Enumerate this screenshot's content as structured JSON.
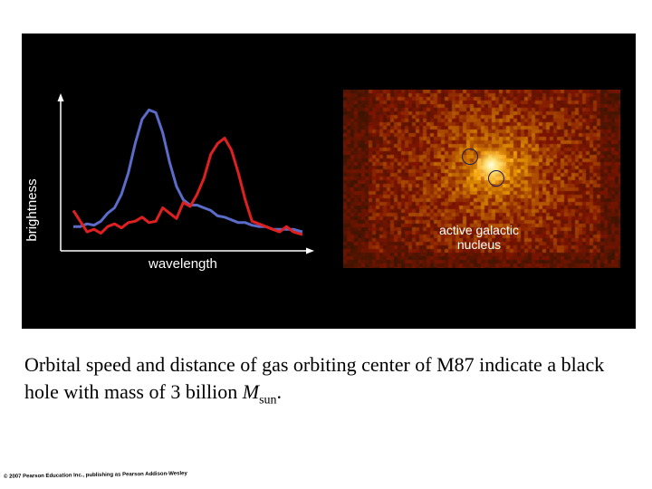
{
  "chart_data": {
    "type": "line",
    "xlabel": "wavelength",
    "ylabel": "brightness",
    "grid": false,
    "legend": "none",
    "series": [
      {
        "color": "#5a6bc8",
        "x": [
          0,
          3,
          6,
          9,
          12,
          15,
          18,
          21,
          24,
          27,
          30,
          33,
          36,
          39,
          42,
          45,
          48,
          51,
          54,
          57,
          60,
          63,
          66,
          69,
          72,
          75,
          78,
          81,
          84,
          87,
          90,
          93,
          96,
          100
        ],
        "y": [
          10,
          10,
          12,
          11,
          14,
          20,
          24,
          34,
          50,
          72,
          90,
          97,
          95,
          80,
          58,
          40,
          30,
          26,
          26,
          24,
          22,
          18,
          17,
          15,
          13,
          13,
          11,
          10,
          10,
          8,
          8,
          8,
          8,
          6
        ]
      },
      {
        "color": "#e02020",
        "x": [
          0,
          3,
          6,
          9,
          12,
          15,
          18,
          21,
          24,
          27,
          30,
          33,
          36,
          39,
          42,
          45,
          48,
          51,
          54,
          57,
          60,
          63,
          66,
          69,
          72,
          75,
          78,
          81,
          84,
          87,
          90,
          93,
          96,
          100
        ],
        "y": [
          22,
          14,
          6,
          8,
          5,
          10,
          12,
          9,
          13,
          14,
          17,
          13,
          14,
          24,
          20,
          16,
          28,
          25,
          34,
          46,
          64,
          72,
          76,
          67,
          50,
          30,
          14,
          12,
          10,
          8,
          6,
          10,
          6,
          4
        ]
      }
    ]
  },
  "image_panel": {
    "label_line1": "active galactic",
    "label_line2": "nucleus"
  },
  "caption": {
    "text": "Orbital speed and distance of gas orbiting center of M87 indicate a black hole with mass of 3 billion",
    "symbol": "M",
    "subscript": "sun",
    "end": "."
  },
  "copyright": "© 2007 Pearson Education Inc., publishing as Pearson Addison-Wesley"
}
